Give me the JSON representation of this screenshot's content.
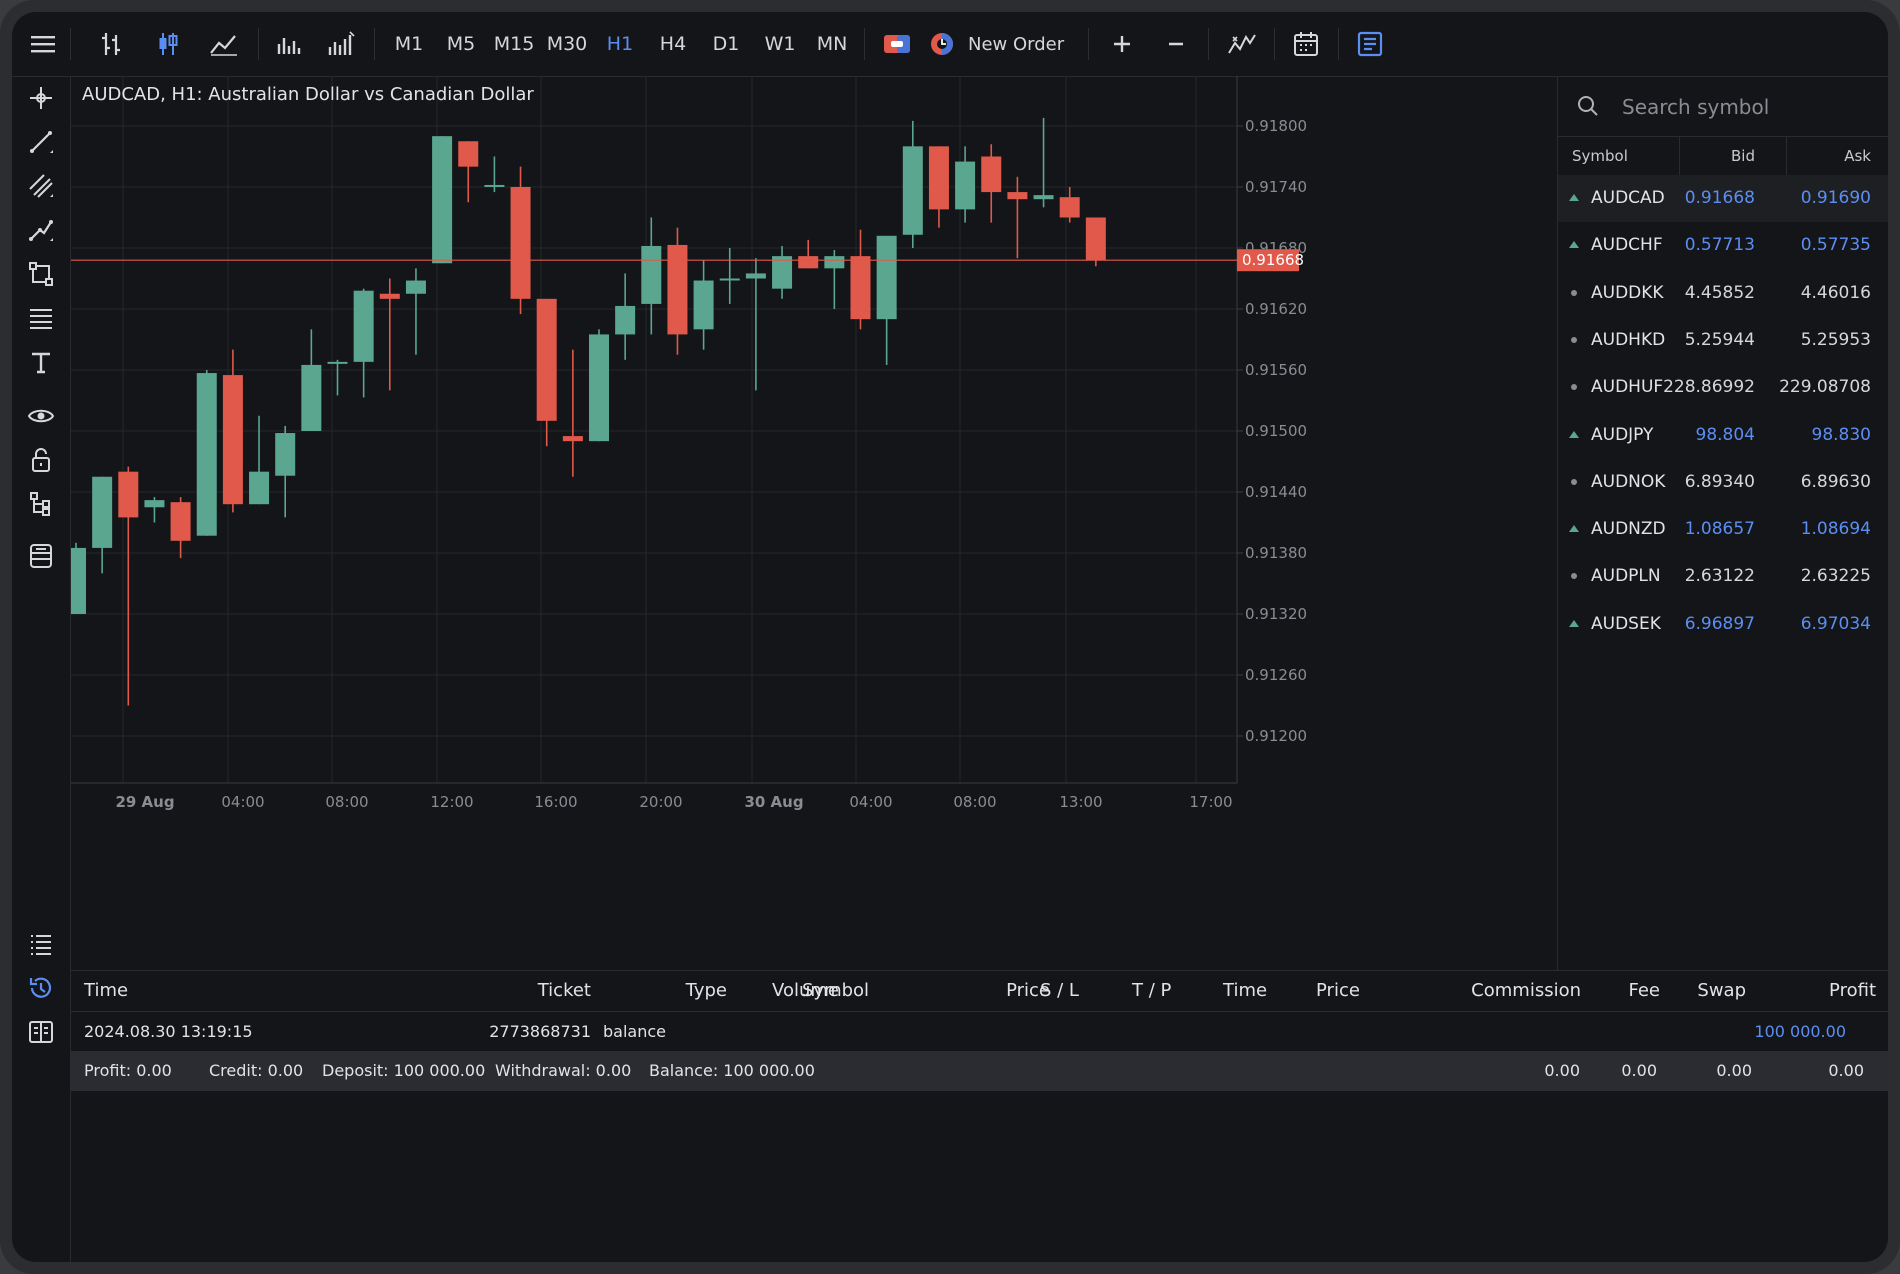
{
  "toolbar": {
    "timeframes": [
      "M1",
      "M5",
      "M15",
      "M30",
      "H1",
      "H4",
      "D1",
      "W1",
      "MN"
    ],
    "active_timeframe": "H1",
    "new_order_label": "New Order"
  },
  "chart": {
    "title": "AUDCAD, H1: Australian Dollar vs Canadian Dollar",
    "current_price": "0.91668",
    "price_labels": [
      "0.91800",
      "0.91740",
      "0.91680",
      "0.91620",
      "0.91560",
      "0.91500",
      "0.91440",
      "0.91380",
      "0.91320",
      "0.91260",
      "0.91200"
    ],
    "time_labels": [
      {
        "label": "29 Aug",
        "bold": true
      },
      {
        "label": "04:00",
        "bold": false
      },
      {
        "label": "08:00",
        "bold": false
      },
      {
        "label": "12:00",
        "bold": false
      },
      {
        "label": "16:00",
        "bold": false
      },
      {
        "label": "20:00",
        "bold": false
      },
      {
        "label": "30 Aug",
        "bold": true
      },
      {
        "label": "04:00",
        "bold": false
      },
      {
        "label": "08:00",
        "bold": false
      },
      {
        "label": "13:00",
        "bold": false
      },
      {
        "label": "17:00",
        "bold": false
      }
    ],
    "up_color": "#5aa68f",
    "down_color": "#e0594a",
    "candles": [
      {
        "o": 0.9132,
        "h": 0.9139,
        "l": 0.9132,
        "c": 0.91385
      },
      {
        "o": 0.91385,
        "h": 0.91455,
        "l": 0.9136,
        "c": 0.91455
      },
      {
        "o": 0.9146,
        "h": 0.91465,
        "l": 0.9123,
        "c": 0.91415
      },
      {
        "o": 0.91425,
        "h": 0.91435,
        "l": 0.9141,
        "c": 0.91432
      },
      {
        "o": 0.9143,
        "h": 0.91435,
        "l": 0.91375,
        "c": 0.91392
      },
      {
        "o": 0.91397,
        "h": 0.9156,
        "l": 0.91397,
        "c": 0.91557
      },
      {
        "o": 0.91555,
        "h": 0.9158,
        "l": 0.9142,
        "c": 0.91428
      },
      {
        "o": 0.91428,
        "h": 0.91515,
        "l": 0.91428,
        "c": 0.9146
      },
      {
        "o": 0.91456,
        "h": 0.91505,
        "l": 0.91415,
        "c": 0.91498
      },
      {
        "o": 0.915,
        "h": 0.916,
        "l": 0.915,
        "c": 0.91565
      },
      {
        "o": 0.91567,
        "h": 0.9157,
        "l": 0.91535,
        "c": 0.91568
      },
      {
        "o": 0.91568,
        "h": 0.9164,
        "l": 0.91533,
        "c": 0.91638
      },
      {
        "o": 0.91635,
        "h": 0.9165,
        "l": 0.9154,
        "c": 0.9163
      },
      {
        "o": 0.91635,
        "h": 0.9166,
        "l": 0.91575,
        "c": 0.91648
      },
      {
        "o": 0.91665,
        "h": 0.9179,
        "l": 0.91665,
        "c": 0.9179
      },
      {
        "o": 0.91785,
        "h": 0.91785,
        "l": 0.91725,
        "c": 0.9176
      },
      {
        "o": 0.91742,
        "h": 0.9177,
        "l": 0.91735,
        "c": 0.91742
      },
      {
        "o": 0.9174,
        "h": 0.9176,
        "l": 0.91615,
        "c": 0.9163
      },
      {
        "o": 0.9163,
        "h": 0.9163,
        "l": 0.91485,
        "c": 0.9151
      },
      {
        "o": 0.91495,
        "h": 0.9158,
        "l": 0.91455,
        "c": 0.9149
      },
      {
        "o": 0.9149,
        "h": 0.916,
        "l": 0.9149,
        "c": 0.91595
      },
      {
        "o": 0.91595,
        "h": 0.91655,
        "l": 0.9157,
        "c": 0.91623
      },
      {
        "o": 0.91625,
        "h": 0.9171,
        "l": 0.91595,
        "c": 0.91682
      },
      {
        "o": 0.91683,
        "h": 0.917,
        "l": 0.91575,
        "c": 0.91595
      },
      {
        "o": 0.916,
        "h": 0.91668,
        "l": 0.9158,
        "c": 0.91648
      },
      {
        "o": 0.9165,
        "h": 0.9168,
        "l": 0.91625,
        "c": 0.9165
      },
      {
        "o": 0.9165,
        "h": 0.9167,
        "l": 0.9154,
        "c": 0.91655
      },
      {
        "o": 0.9164,
        "h": 0.91682,
        "l": 0.9163,
        "c": 0.91672
      },
      {
        "o": 0.91672,
        "h": 0.91688,
        "l": 0.9166,
        "c": 0.9166
      },
      {
        "o": 0.9166,
        "h": 0.91678,
        "l": 0.9162,
        "c": 0.91672
      },
      {
        "o": 0.91672,
        "h": 0.91698,
        "l": 0.916,
        "c": 0.9161
      },
      {
        "o": 0.9161,
        "h": 0.9169,
        "l": 0.91565,
        "c": 0.91692
      },
      {
        "o": 0.91693,
        "h": 0.91805,
        "l": 0.9168,
        "c": 0.9178
      },
      {
        "o": 0.9178,
        "h": 0.9178,
        "l": 0.917,
        "c": 0.91718
      },
      {
        "o": 0.91718,
        "h": 0.9178,
        "l": 0.91705,
        "c": 0.91765
      },
      {
        "o": 0.9177,
        "h": 0.91782,
        "l": 0.91705,
        "c": 0.91735
      },
      {
        "o": 0.91735,
        "h": 0.9175,
        "l": 0.9167,
        "c": 0.91728
      },
      {
        "o": 0.91728,
        "h": 0.91808,
        "l": 0.9172,
        "c": 0.91732
      },
      {
        "o": 0.9173,
        "h": 0.9174,
        "l": 0.91705,
        "c": 0.9171
      },
      {
        "o": 0.9171,
        "h": 0.9171,
        "l": 0.91662,
        "c": 0.91668
      }
    ]
  },
  "market_watch": {
    "search_placeholder": "Search symbol",
    "col_symbol": "Symbol",
    "col_bid": "Bid",
    "col_ask": "Ask",
    "rows": [
      {
        "symbol": "AUDCAD",
        "bid": "0.91668",
        "ask": "0.91690",
        "state": "up",
        "selected": true
      },
      {
        "symbol": "AUDCHF",
        "bid": "0.57713",
        "ask": "0.57735",
        "state": "up",
        "selected": false
      },
      {
        "symbol": "AUDDKK",
        "bid": "4.45852",
        "ask": "4.46016",
        "state": "flat",
        "selected": false
      },
      {
        "symbol": "AUDHKD",
        "bid": "5.25944",
        "ask": "5.25953",
        "state": "flat",
        "selected": false
      },
      {
        "symbol": "AUDHUF",
        "bid": "228.86992",
        "ask": "229.08708",
        "state": "flat",
        "selected": false
      },
      {
        "symbol": "AUDJPY",
        "bid": "98.804",
        "ask": "98.830",
        "state": "up",
        "selected": false
      },
      {
        "symbol": "AUDNOK",
        "bid": "6.89340",
        "ask": "6.89630",
        "state": "flat",
        "selected": false
      },
      {
        "symbol": "AUDNZD",
        "bid": "1.08657",
        "ask": "1.08694",
        "state": "up",
        "selected": false
      },
      {
        "symbol": "AUDPLN",
        "bid": "2.63122",
        "ask": "2.63225",
        "state": "flat",
        "selected": false
      },
      {
        "symbol": "AUDSEK",
        "bid": "6.96897",
        "ask": "6.97034",
        "state": "up",
        "selected": false
      }
    ]
  },
  "history": {
    "headers": {
      "time": "Time",
      "ticket": "Ticket",
      "type": "Type",
      "volume": "Volume",
      "symbol": "Symbol",
      "price": "Price",
      "sl": "S / L",
      "tp": "T / P",
      "time2": "Time",
      "price2": "Price",
      "commission": "Commission",
      "fee": "Fee",
      "swap": "Swap",
      "profit": "Profit"
    },
    "row": {
      "time": "2024.08.30 13:19:15",
      "ticket": "2773868731",
      "type": "balance",
      "profit": "100 000.00"
    },
    "summary": {
      "profit": "Profit: 0.00",
      "credit": "Credit: 0.00",
      "deposit": "Deposit: 100 000.00",
      "withdrawal": "Withdrawal: 0.00",
      "balance": "Balance: 100 000.00",
      "commission": "0.00",
      "fee": "0.00",
      "swap": "0.00",
      "profit_total": "0.00"
    }
  },
  "colors": {
    "accent": "#5b8ef2",
    "up": "#5aa68f",
    "down": "#e0594a",
    "background": "#141518"
  }
}
